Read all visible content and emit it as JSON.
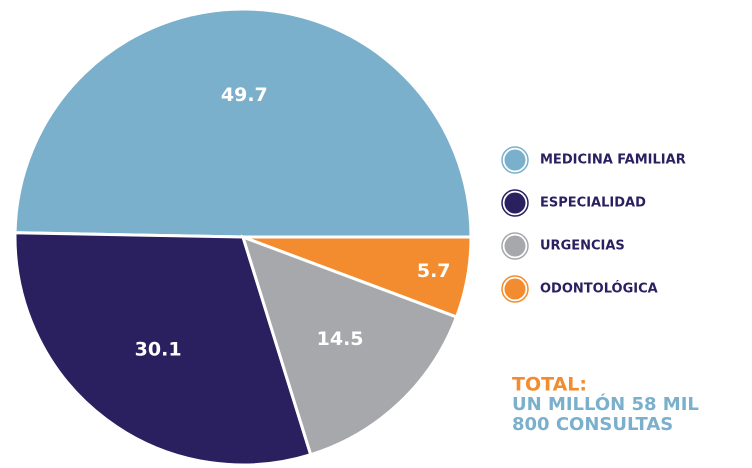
{
  "chart_data": {
    "type": "pie",
    "categories": [
      "MEDICINA FAMILIAR",
      "ESPECIALIDAD",
      "URGENCIAS",
      "ODONTOLÓGICA"
    ],
    "values": [
      49.7,
      30.1,
      14.5,
      5.7
    ],
    "colors": [
      "#7ab0cc",
      "#2a2060",
      "#a7a8ab",
      "#f28c2e"
    ],
    "annotations": [
      "TOTAL:",
      "UN MILLÓN 58 MIL",
      "800 CONSULTAS"
    ]
  }
}
